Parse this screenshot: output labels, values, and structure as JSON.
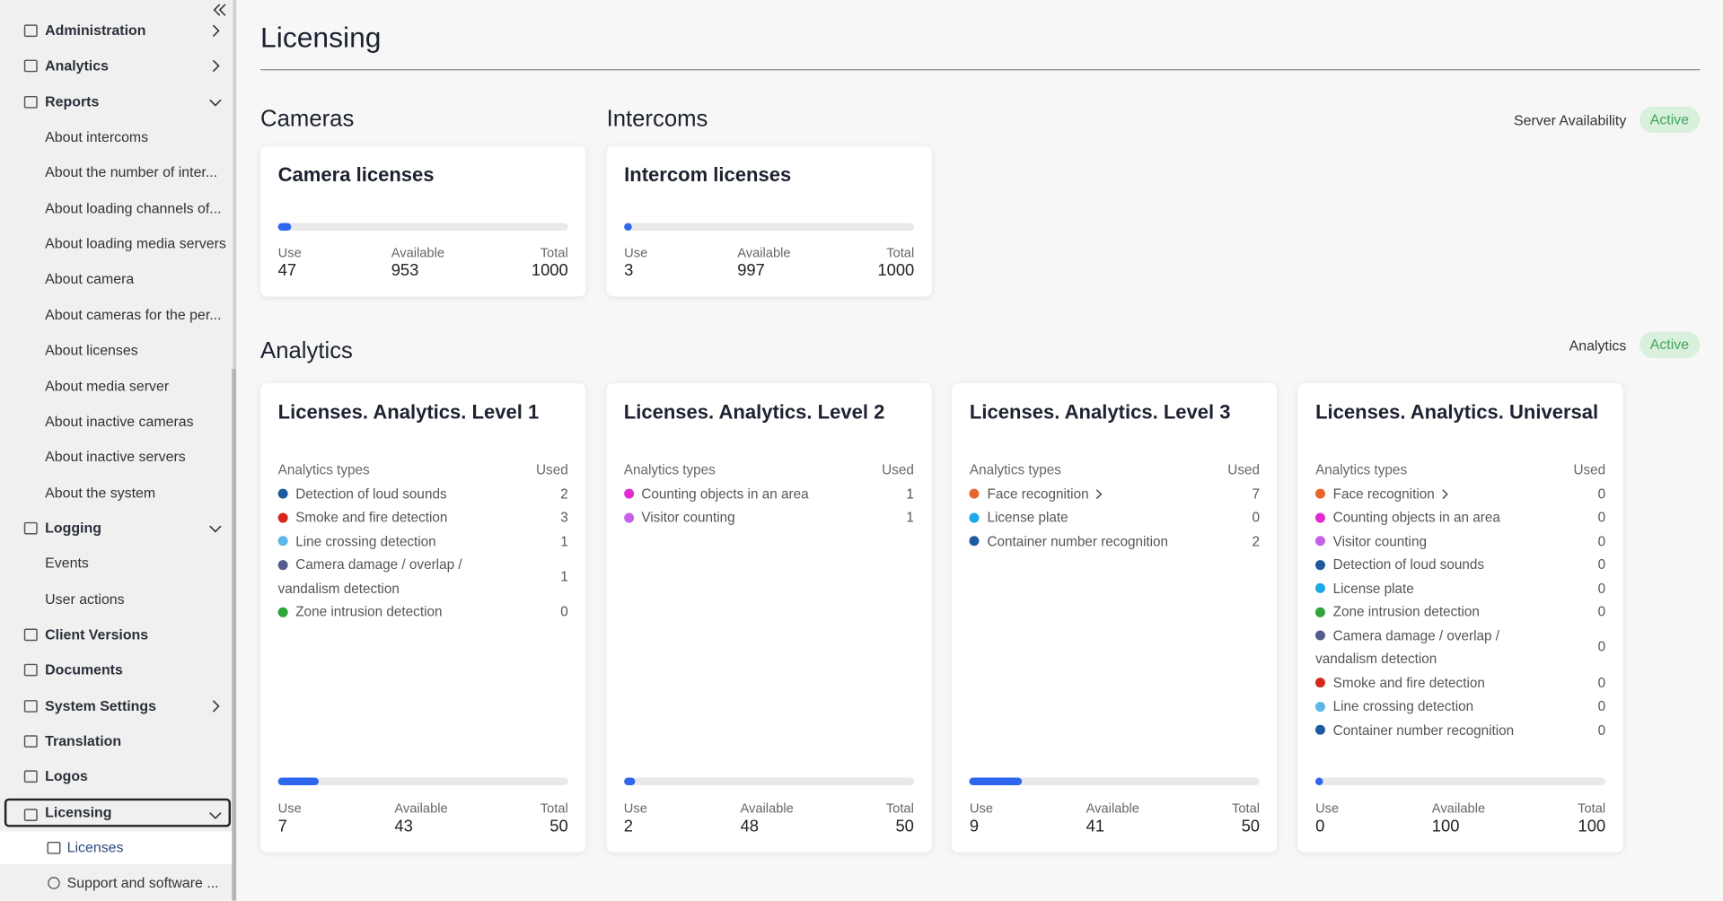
{
  "sidebar": {
    "items": [
      "Administration",
      "Analytics",
      "Reports",
      "About intercoms",
      "About the number of inter...",
      "About loading channels of...",
      "About loading media servers",
      "About camera",
      "About cameras for the per...",
      "About licenses",
      "About media server",
      "About inactive cameras",
      "About inactive servers",
      "About the system",
      "Logging",
      "Events",
      "User actions",
      "Client Versions",
      "Documents",
      "System Settings",
      "Translation",
      "Logos",
      "Licensing",
      "Licenses",
      "Support and software ..."
    ]
  },
  "page": {
    "title": "Licensing"
  },
  "devices": {
    "cameras_title": "Cameras",
    "intercoms_title": "Intercoms",
    "status_label": "Server Availability",
    "status": "Active",
    "cards": [
      {
        "title": "Camera licenses",
        "use_label": "Use",
        "use": 47,
        "available_label": "Available",
        "available": 953,
        "total_label": "Total",
        "total": 1000
      },
      {
        "title": "Intercom licenses",
        "use_label": "Use",
        "use": 3,
        "available_label": "Available",
        "available": 997,
        "total_label": "Total",
        "total": 1000
      }
    ]
  },
  "analytics": {
    "title": "Analytics",
    "status_label": "Analytics",
    "status": "Active",
    "cards": [
      {
        "title": "Licenses. Analytics. Level 1",
        "types_label": "Analytics types",
        "used_label": "Used",
        "rows": [
          {
            "name": "Detection of loud sounds",
            "color": "#1d5a9e",
            "used": 2
          },
          {
            "name": "Smoke and fire detection",
            "color": "#d6281a",
            "used": 3
          },
          {
            "name": "Line crossing detection",
            "color": "#5cb6e8",
            "used": 1
          },
          {
            "name": "Camera damage / overlap / vandalism detection",
            "color": "#565c8c",
            "used": 1
          },
          {
            "name": "Zone intrusion detection",
            "color": "#2ea43a",
            "used": 0
          }
        ],
        "use_label": "Use",
        "use": 7,
        "available_label": "Available",
        "available": 43,
        "total_label": "Total",
        "total": 50
      },
      {
        "title": "Licenses. Analytics. Level 2",
        "types_label": "Analytics types",
        "used_label": "Used",
        "rows": [
          {
            "name": "Counting objects in an area",
            "color": "#e22ccf",
            "used": 1
          },
          {
            "name": "Visitor counting",
            "color": "#c660e8",
            "used": 1
          }
        ],
        "use_label": "Use",
        "use": 2,
        "available_label": "Available",
        "available": 48,
        "total_label": "Total",
        "total": 50
      },
      {
        "title": "Licenses. Analytics. Level 3",
        "types_label": "Analytics types",
        "used_label": "Used",
        "rows": [
          {
            "name": "Face recognition",
            "color": "#e8652e",
            "used": 7
          },
          {
            "name": "License plate",
            "color": "#1aa8e8",
            "used": 0
          },
          {
            "name": "Container number recognition",
            "color": "#1d5a9e",
            "used": 2
          }
        ],
        "use_label": "Use",
        "use": 9,
        "available_label": "Available",
        "available": 41,
        "total_label": "Total",
        "total": 50
      },
      {
        "title": "Licenses. Analytics. Universal",
        "types_label": "Analytics types",
        "used_label": "Used",
        "rows": [
          {
            "name": "Face recognition",
            "color": "#e8652e",
            "used": 0
          },
          {
            "name": "Counting objects in an area",
            "color": "#e22ccf",
            "used": 0
          },
          {
            "name": "Visitor counting",
            "color": "#c660e8",
            "used": 0
          },
          {
            "name": "Detection of loud sounds",
            "color": "#1d5a9e",
            "used": 0
          },
          {
            "name": "License plate",
            "color": "#1aa8e8",
            "used": 0
          },
          {
            "name": "Zone intrusion detection",
            "color": "#2ea43a",
            "used": 0
          },
          {
            "name": "Camera damage / overlap / vandalism detection",
            "color": "#565c8c",
            "used": 0
          },
          {
            "name": "Smoke and fire detection",
            "color": "#d6281a",
            "used": 0
          },
          {
            "name": "Line crossing detection",
            "color": "#5cb6e8",
            "used": 0
          },
          {
            "name": "Container number recognition",
            "color": "#1d5a9e",
            "used": 0
          }
        ],
        "use_label": "Use",
        "use": 0,
        "available_label": "Available",
        "available": 100,
        "total_label": "Total",
        "total": 100
      }
    ]
  }
}
